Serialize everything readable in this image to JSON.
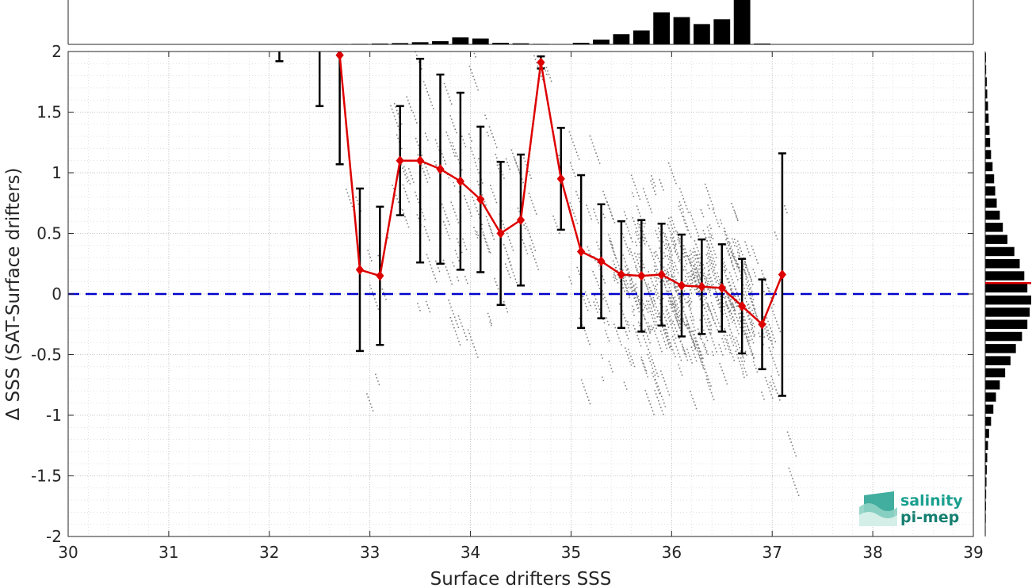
{
  "chart_data": {
    "type": "scatter",
    "xlabel": "Surface drifters SSS",
    "ylabel": "Δ SSS (SAT-Surface drifters)",
    "xlim": [
      30,
      39
    ],
    "ylim": [
      -2,
      2
    ],
    "xticks": [
      "30",
      "31",
      "32",
      "33",
      "34",
      "35",
      "36",
      "37",
      "38",
      "39"
    ],
    "yticks": [
      "-2",
      "-1.5",
      "-1",
      "-0.5",
      "0",
      "0.5",
      "1",
      "1.5",
      "2"
    ],
    "grid": true,
    "zero_line": {
      "y": 0,
      "color": "#0000cc",
      "style": "dashed"
    },
    "point_color": "#808080",
    "mean_color": "#dd0000",
    "mean_series": {
      "x": [
        32.1,
        32.5,
        32.7,
        32.9,
        33.1,
        33.3,
        33.5,
        33.7,
        33.9,
        34.1,
        34.3,
        34.5,
        34.7,
        34.9,
        35.1,
        35.3,
        35.5,
        35.7,
        35.9,
        36.1,
        36.3,
        36.5,
        36.7,
        36.9,
        37.1
      ],
      "mean": [
        2.4,
        2.4,
        1.97,
        0.2,
        0.15,
        1.1,
        1.1,
        1.03,
        0.93,
        0.78,
        0.5,
        0.61,
        1.91,
        0.95,
        0.35,
        0.27,
        0.16,
        0.15,
        0.16,
        0.07,
        0.06,
        0.05,
        -0.1,
        -0.25,
        0.16
      ],
      "std": [
        0.48,
        0.85,
        0.9,
        0.67,
        0.57,
        0.45,
        0.84,
        0.78,
        0.73,
        0.6,
        0.59,
        0.54,
        0.05,
        0.42,
        0.63,
        0.47,
        0.44,
        0.46,
        0.42,
        0.42,
        0.39,
        0.36,
        0.39,
        0.37,
        1.0
      ]
    },
    "top_histogram": {
      "bin_centers": [
        32.1,
        32.3,
        32.5,
        32.7,
        32.9,
        33.1,
        33.3,
        33.5,
        33.7,
        33.9,
        34.1,
        34.3,
        34.5,
        34.7,
        34.9,
        35.1,
        35.3,
        35.5,
        35.7,
        35.9,
        36.1,
        36.3,
        36.5,
        36.7,
        36.9
      ],
      "counts": [
        0.3,
        0.3,
        0.3,
        0.4,
        0.5,
        0.8,
        1.2,
        2.0,
        3.0,
        6.5,
        5.5,
        1.5,
        1.0,
        0.5,
        0.4,
        1.5,
        4.5,
        9.5,
        13.0,
        30.0,
        25.5,
        19.0,
        23.5,
        43.0,
        0.8
      ]
    },
    "side_histogram": {
      "bin_centers": [
        1.95,
        1.85,
        1.75,
        1.65,
        1.55,
        1.45,
        1.35,
        1.25,
        1.15,
        1.05,
        0.95,
        0.85,
        0.75,
        0.65,
        0.55,
        0.45,
        0.35,
        0.25,
        0.15,
        0.05,
        -0.05,
        -0.15,
        -0.25,
        -0.35,
        -0.45,
        -0.55,
        -0.65,
        -0.75,
        -0.85,
        -0.95,
        -1.05,
        -1.15,
        -1.25,
        -1.35,
        -1.45,
        -1.55,
        -1.65,
        -1.75,
        -1.85,
        -1.95
      ],
      "counts": [
        0.5,
        0.6,
        1,
        1.3,
        1.8,
        2.2,
        2.8,
        3.2,
        3.8,
        4.8,
        5.8,
        6.5,
        7.5,
        9.5,
        11.5,
        14.5,
        19,
        22.5,
        25.5,
        27.5,
        30,
        29,
        27.5,
        24,
        20,
        16.5,
        13,
        9.5,
        7,
        5.3,
        3.8,
        2.5,
        1.8,
        1.3,
        1,
        0.8,
        0.6,
        0.5,
        0.4,
        0.3
      ],
      "median_line": 0.09
    }
  },
  "logo": {
    "line1": "salinity",
    "line2": "pi-mep"
  }
}
